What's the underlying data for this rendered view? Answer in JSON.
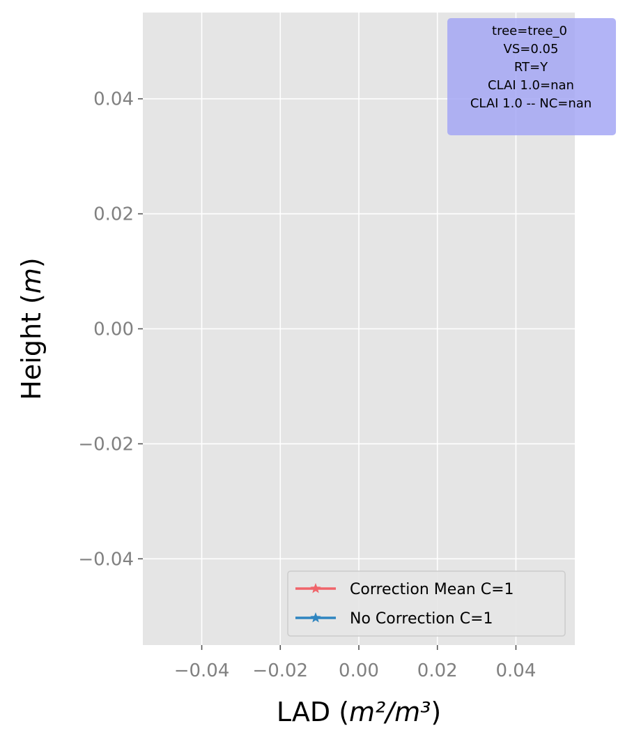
{
  "chart_data": {
    "type": "line",
    "title": "",
    "xlabel": {
      "prefix": "LAD (",
      "math": "m²/m³",
      "suffix": ")"
    },
    "ylabel": {
      "prefix": "Height (",
      "math": "m",
      "suffix": ")"
    },
    "xlim": [
      -0.055,
      0.055
    ],
    "ylim": [
      -0.055,
      0.055
    ],
    "xticks": [
      -0.04,
      -0.02,
      0.0,
      0.02,
      0.04
    ],
    "yticks": [
      -0.04,
      -0.02,
      0.0,
      0.02,
      0.04
    ],
    "xtick_labels": [
      "−0.04",
      "−0.02",
      "0.00",
      "0.02",
      "0.04"
    ],
    "ytick_labels": [
      "−0.04",
      "−0.02",
      "0.00",
      "0.02",
      "0.04"
    ],
    "grid": true,
    "style": "ggplot",
    "series": [
      {
        "name": "Correction Mean C=1",
        "color": "#f0646a",
        "marker": "star",
        "points": []
      },
      {
        "name": "No Correction C=1",
        "color": "#2f85c0",
        "marker": "star",
        "points": []
      }
    ],
    "legend_position": "lower-right",
    "annotation": {
      "position": "top-right",
      "background": "#a5a7f5",
      "lines": [
        "tree=tree_0",
        "VS=0.05",
        "RT=Y",
        "CLAI 1.0=nan",
        "CLAI 1.0 -- NC=nan"
      ]
    }
  }
}
